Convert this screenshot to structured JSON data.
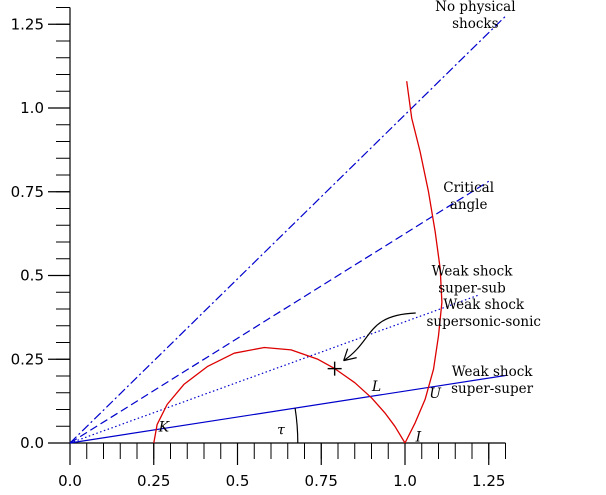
{
  "chart_data": {
    "type": "line",
    "title": "",
    "xlabel": "",
    "ylabel": "",
    "xlim": [
      0,
      1.3
    ],
    "ylim": [
      0,
      1.3
    ],
    "grid": false,
    "legend": "none",
    "x_ticks": [
      {
        "value": 0.0,
        "label": "0.0"
      },
      {
        "value": 0.25,
        "label": "0.25"
      },
      {
        "value": 0.5,
        "label": "0.5"
      },
      {
        "value": 0.75,
        "label": "0.75"
      },
      {
        "value": 1.0,
        "label": "1.0"
      },
      {
        "value": 1.25,
        "label": "1.25"
      }
    ],
    "y_ticks": [
      {
        "value": 0.0,
        "label": "0.0"
      },
      {
        "value": 0.25,
        "label": "0.25"
      },
      {
        "value": 0.5,
        "label": "0.5"
      },
      {
        "value": 0.75,
        "label": "0.75"
      },
      {
        "value": 1.0,
        "label": "1.0"
      },
      {
        "value": 1.25,
        "label": "1.25"
      }
    ],
    "minor_tick_step": 0.05,
    "rays": [
      {
        "id": "no-physical",
        "slope": 0.98,
        "x_end": 1.3,
        "color": "#0000cc",
        "dash": "9 3 2 3"
      },
      {
        "id": "critical",
        "slope": 0.625,
        "x_end": 1.25,
        "color": "#0000cc",
        "dash": "8 4"
      },
      {
        "id": "weak-sub",
        "slope": 0.362,
        "x_end": 1.22,
        "color": "#0000cc",
        "dash": "1.5 2.5"
      },
      {
        "id": "weak-super",
        "slope": 0.155,
        "x_end": 1.3,
        "color": "#0000cc",
        "dash": ""
      }
    ],
    "curves": [
      {
        "id": "ellipse-arc",
        "color": "#dd0000",
        "points": [
          [
            0.25,
            0.0
          ],
          [
            0.26,
            0.055
          ],
          [
            0.29,
            0.115
          ],
          [
            0.34,
            0.175
          ],
          [
            0.41,
            0.228
          ],
          [
            0.49,
            0.268
          ],
          [
            0.58,
            0.285
          ],
          [
            0.66,
            0.278
          ],
          [
            0.74,
            0.25
          ],
          [
            0.79,
            0.222
          ],
          [
            0.85,
            0.18
          ],
          [
            0.9,
            0.135
          ],
          [
            0.94,
            0.09
          ],
          [
            0.97,
            0.05
          ],
          [
            1.0,
            0.0
          ]
        ]
      },
      {
        "id": "shock-polar",
        "color": "#dd0000",
        "points": [
          [
            1.0,
            0.0
          ],
          [
            1.03,
            0.06
          ],
          [
            1.06,
            0.13
          ],
          [
            1.085,
            0.22
          ],
          [
            1.1,
            0.32
          ],
          [
            1.11,
            0.42
          ],
          [
            1.105,
            0.52
          ],
          [
            1.09,
            0.63
          ],
          [
            1.07,
            0.75
          ],
          [
            1.045,
            0.87
          ],
          [
            1.02,
            0.97
          ],
          [
            1.005,
            1.08
          ]
        ]
      }
    ],
    "tau_arc": {
      "center": [
        0.0,
        0.0
      ],
      "radius": 0.68
    },
    "marker": {
      "x": 0.79,
      "y": 0.222,
      "symbol": "+"
    },
    "annotations": [
      {
        "lines": [
          "No physical",
          "shocks"
        ],
        "at": [
          1.21,
          1.29
        ]
      },
      {
        "lines": [
          "Critical",
          "angle"
        ],
        "at": [
          1.19,
          0.75
        ]
      },
      {
        "lines": [
          "Weak shock",
          "super-sub"
        ],
        "at": [
          1.2,
          0.5
        ]
      },
      {
        "lines": [
          "Weak shock",
          "supersonic-sonic"
        ],
        "at": [
          1.235,
          0.4
        ]
      },
      {
        "lines": [
          "Weak shock",
          "super-super"
        ],
        "at": [
          1.26,
          0.2
        ]
      }
    ],
    "point_labels": [
      {
        "text": "K",
        "at": [
          0.28,
          0.035
        ]
      },
      {
        "text": "L",
        "at": [
          0.915,
          0.155
        ]
      },
      {
        "text": "U",
        "at": [
          1.09,
          0.135
        ]
      },
      {
        "text": "I",
        "at": [
          1.04,
          0.005
        ]
      },
      {
        "text": "τ",
        "at": [
          0.63,
          0.025
        ]
      }
    ]
  }
}
